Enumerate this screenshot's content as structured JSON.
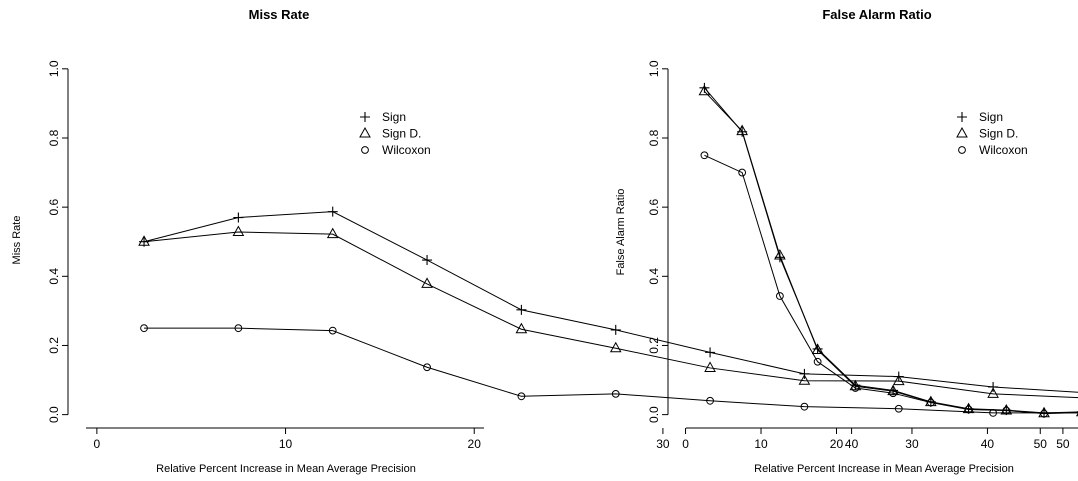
{
  "chart_data": [
    {
      "type": "line",
      "title": "Miss Rate",
      "xlabel": "Relative Percent Increase in Mean Average Precision",
      "ylabel": "Miss Rate",
      "xlim": [
        -1,
        52
      ],
      "ylim": [
        -0.03,
        1.04
      ],
      "xticks": [
        0,
        10,
        20,
        30,
        40,
        50
      ],
      "yticks": [
        0.0,
        0.2,
        0.4,
        0.6,
        0.8,
        1.0
      ],
      "xtick_labels": [
        "0",
        "10",
        "20",
        "30",
        "40",
        "50"
      ],
      "ytick_labels": [
        "0.0",
        "0.2",
        "0.4",
        "0.6",
        "0.8",
        "1.0"
      ],
      "legend": "top-right",
      "grid": false,
      "series": [
        {
          "name": "Sign",
          "marker": "plus",
          "x": [
            2.5,
            7.5,
            12.5,
            17.5,
            22.5,
            27.5,
            32.5,
            37.5,
            42.5,
            47.5,
            52.5
          ],
          "y": [
            0.5,
            0.57,
            0.587,
            0.447,
            0.303,
            0.245,
            0.18,
            0.118,
            0.11,
            0.08,
            0.063
          ]
        },
        {
          "name": "Sign D.",
          "marker": "triangle",
          "x": [
            2.5,
            7.5,
            12.5,
            17.5,
            22.5,
            27.5,
            32.5,
            37.5,
            42.5,
            47.5,
            52.5
          ],
          "y": [
            0.5,
            0.528,
            0.522,
            0.378,
            0.247,
            0.192,
            0.135,
            0.098,
            0.097,
            0.06,
            0.048
          ]
        },
        {
          "name": "Wilcoxon",
          "marker": "circle",
          "x": [
            2.5,
            7.5,
            12.5,
            17.5,
            22.5,
            27.5,
            32.5,
            37.5,
            42.5,
            47.5,
            52.5
          ],
          "y": [
            0.25,
            0.25,
            0.243,
            0.137,
            0.053,
            0.06,
            0.04,
            0.023,
            0.017,
            0.005,
            0.005
          ]
        }
      ]
    },
    {
      "type": "line",
      "title": "False Alarm Ratio",
      "xlabel": "Relative Percent Increase in Mean Average Precision",
      "ylabel": "False Alarm Ratio",
      "xlim": [
        -1,
        52
      ],
      "ylim": [
        -0.03,
        1.04
      ],
      "xticks": [
        0,
        10,
        20,
        30,
        40,
        50
      ],
      "yticks": [
        0.0,
        0.2,
        0.4,
        0.6,
        0.8,
        1.0
      ],
      "xtick_labels": [
        "0",
        "10",
        "20",
        "30",
        "40",
        "50"
      ],
      "ytick_labels": [
        "0.0",
        "0.2",
        "0.4",
        "0.6",
        "0.8",
        "1.0"
      ],
      "legend": "top-right",
      "grid": false,
      "series": [
        {
          "name": "Sign",
          "marker": "plus",
          "x": [
            2.5,
            7.5,
            12.5,
            17.5,
            22.5,
            27.5,
            32.5,
            37.5,
            42.5,
            47.5,
            52.5
          ],
          "y": [
            0.945,
            0.818,
            0.455,
            0.19,
            0.085,
            0.07,
            0.037,
            0.017,
            0.013,
            0.005,
            0.008
          ]
        },
        {
          "name": "Sign D.",
          "marker": "triangle",
          "x": [
            2.5,
            7.5,
            12.5,
            17.5,
            22.5,
            27.5,
            32.5,
            37.5,
            42.5,
            47.5,
            52.5
          ],
          "y": [
            0.935,
            0.82,
            0.46,
            0.187,
            0.082,
            0.068,
            0.036,
            0.016,
            0.012,
            0.004,
            0.007
          ]
        },
        {
          "name": "Wilcoxon",
          "marker": "circle",
          "x": [
            2.5,
            7.5,
            12.5,
            17.5,
            22.5,
            27.5,
            32.5,
            37.5,
            42.5,
            47.5,
            52.5
          ],
          "y": [
            0.75,
            0.7,
            0.343,
            0.153,
            0.077,
            0.062,
            0.035,
            0.015,
            0.012,
            0.003,
            0.006
          ]
        }
      ]
    }
  ]
}
